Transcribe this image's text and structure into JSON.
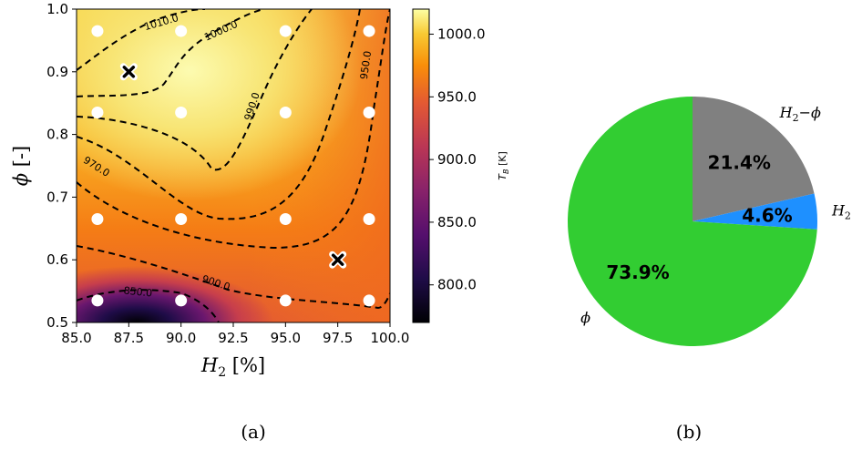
{
  "chart_data": [
    {
      "type": "heatmap",
      "panel_caption": "(a)",
      "xlabel_base": "H",
      "xlabel_sub": "2",
      "xlabel_unit": " [%]",
      "ylabel_symbol": "ϕ",
      "ylabel_unit": " [-]",
      "xlim": [
        85.0,
        100.0
      ],
      "ylim": [
        0.5,
        1.0
      ],
      "xticks": [
        "85.0",
        "87.5",
        "90.0",
        "92.5",
        "95.0",
        "97.5",
        "100.0"
      ],
      "yticks": [
        "0.5",
        "0.6",
        "0.7",
        "0.8",
        "0.9",
        "1.0"
      ],
      "colormap": "inferno",
      "colorbar": {
        "label": "T_B [K]",
        "label_base": "T",
        "label_sub": "B",
        "label_unit": " [K]",
        "range": [
          770,
          1020
        ],
        "ticks": [
          "800.0",
          "850.0",
          "900.0",
          "950.0",
          "1000.0"
        ]
      },
      "contour_labels": [
        "1010.0",
        "1000.0",
        "990.0",
        "970.0",
        "950.0",
        "900.0",
        "850.0"
      ],
      "sample_points_x": [
        86,
        90,
        95,
        99
      ],
      "sample_points_y": [
        0.535,
        0.665,
        0.835,
        0.965
      ],
      "optimum_points": [
        {
          "x": 87.5,
          "y": 0.9
        },
        {
          "x": 97.5,
          "y": 0.6
        }
      ]
    },
    {
      "type": "pie",
      "panel_caption": "(b)",
      "slices": [
        {
          "label_base": "H",
          "label_sub": "2",
          "label_suffix": "−ϕ",
          "value": 21.4,
          "pct_label": "21.4%",
          "color": "#808080"
        },
        {
          "label_base": "H",
          "label_sub": "2",
          "label_suffix": "",
          "value": 4.6,
          "pct_label": "4.6%",
          "color": "#1e90ff"
        },
        {
          "label_base": "ϕ",
          "label_sub": "",
          "label_suffix": "",
          "value": 73.9,
          "pct_label": "73.9%",
          "color": "#32cd32"
        }
      ]
    }
  ]
}
